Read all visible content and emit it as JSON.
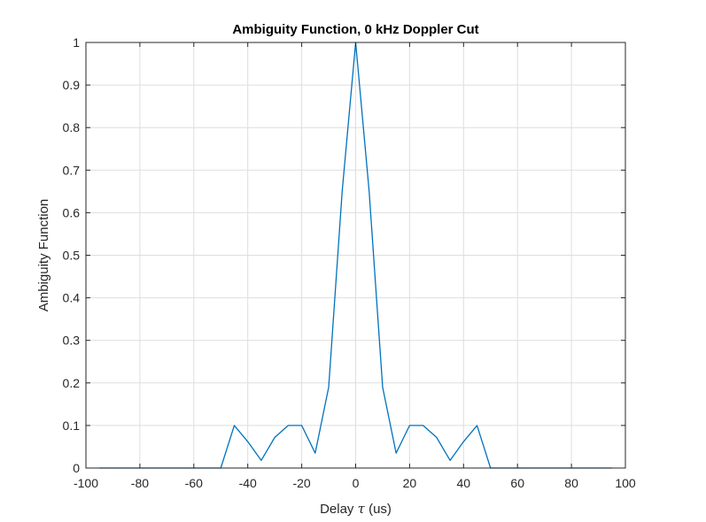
{
  "chart_data": {
    "type": "line",
    "title": "Ambiguity Function, 0 kHz Doppler Cut",
    "xlabel": {
      "prefix": "Delay ",
      "symbol": "τ",
      "suffix": " (us)"
    },
    "ylabel": "Ambiguity Function",
    "xlim": [
      -100,
      100
    ],
    "ylim": [
      0,
      1
    ],
    "xticks": [
      -100,
      -80,
      -60,
      -40,
      -20,
      0,
      20,
      40,
      60,
      80,
      100
    ],
    "yticks": [
      0,
      0.1,
      0.2,
      0.3,
      0.4,
      0.5,
      0.6,
      0.7,
      0.8,
      0.9,
      1
    ],
    "grid": true,
    "series": [
      {
        "color": "#0072BD",
        "x": [
          -95,
          -90,
          -85,
          -80,
          -75,
          -70,
          -65,
          -60,
          -55,
          -50,
          -45,
          -40,
          -35,
          -30,
          -25,
          -20,
          -15,
          -10,
          -5,
          0,
          5,
          10,
          15,
          20,
          25,
          30,
          35,
          40,
          45,
          50,
          55,
          60,
          65,
          70,
          75,
          80,
          85,
          90,
          95
        ],
        "y": [
          0,
          0,
          0,
          0,
          0,
          0,
          0,
          0,
          0,
          0,
          0.1,
          0.062,
          0.018,
          0.072,
          0.1,
          0.1,
          0.035,
          0.19,
          0.65,
          1,
          0.65,
          0.19,
          0.035,
          0.1,
          0.1,
          0.072,
          0.018,
          0.062,
          0.1,
          0,
          0,
          0,
          0,
          0,
          0,
          0,
          0,
          0,
          0
        ]
      }
    ]
  }
}
